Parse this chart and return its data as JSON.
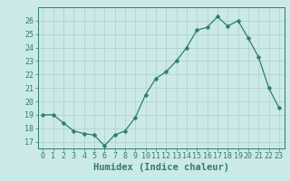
{
  "x": [
    0,
    1,
    2,
    3,
    4,
    5,
    6,
    7,
    8,
    9,
    10,
    11,
    12,
    13,
    14,
    15,
    16,
    17,
    18,
    19,
    20,
    21,
    22,
    23
  ],
  "y": [
    19.0,
    19.0,
    18.4,
    17.8,
    17.6,
    17.5,
    16.7,
    17.5,
    17.8,
    18.8,
    20.5,
    21.7,
    22.2,
    23.0,
    24.0,
    25.3,
    25.5,
    26.3,
    25.6,
    26.0,
    24.7,
    23.3,
    21.0,
    19.5
  ],
  "line_color": "#2d7d6e",
  "marker": "D",
  "marker_size": 2.5,
  "bg_color": "#cce9e9",
  "grid_color": "#b0cdcd",
  "xlabel": "Humidex (Indice chaleur)",
  "ylim": [
    16.5,
    27
  ],
  "xlim": [
    -0.5,
    23.5
  ],
  "yticks": [
    17,
    18,
    19,
    20,
    21,
    22,
    23,
    24,
    25,
    26
  ],
  "xticks": [
    0,
    1,
    2,
    3,
    4,
    5,
    6,
    7,
    8,
    9,
    10,
    11,
    12,
    13,
    14,
    15,
    16,
    17,
    18,
    19,
    20,
    21,
    22,
    23
  ],
  "tick_fontsize": 6,
  "label_fontsize": 7.5
}
